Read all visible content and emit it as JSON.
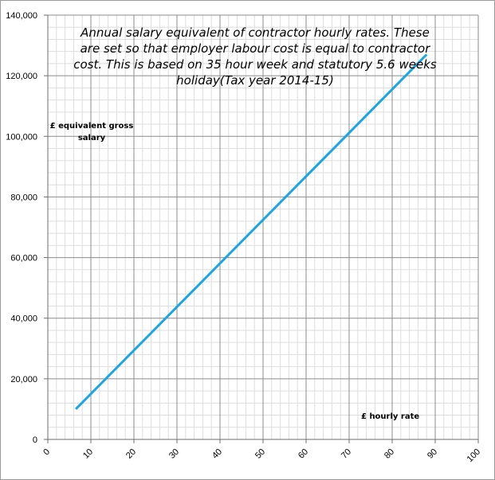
{
  "chart_data": {
    "type": "line",
    "title": "Annual salary equivalent of contractor hourly rates. These are set so that employer labour cost is equal to contractor cost. This is based on 35 hour week and statutory 5.6 weeks holiday(Tax year 2014-15)",
    "xlabel": "£ hourly rate",
    "ylabel": "£ equivalent gross salary",
    "xlim": [
      0,
      100
    ],
    "ylim": [
      0,
      140000
    ],
    "x_ticks": [
      "0",
      "10",
      "20",
      "30",
      "40",
      "50",
      "60",
      "70",
      "80",
      "90",
      "100"
    ],
    "y_ticks": [
      "0",
      "20,000",
      "40,000",
      "60,000",
      "80,000",
      "100,000",
      "120,000",
      "140,000"
    ],
    "grid": true,
    "minor_grid": true,
    "series": [
      {
        "color": "#1ea4df",
        "x": [
          6.5,
          88
        ],
        "y": [
          10000,
          127000
        ]
      }
    ]
  }
}
